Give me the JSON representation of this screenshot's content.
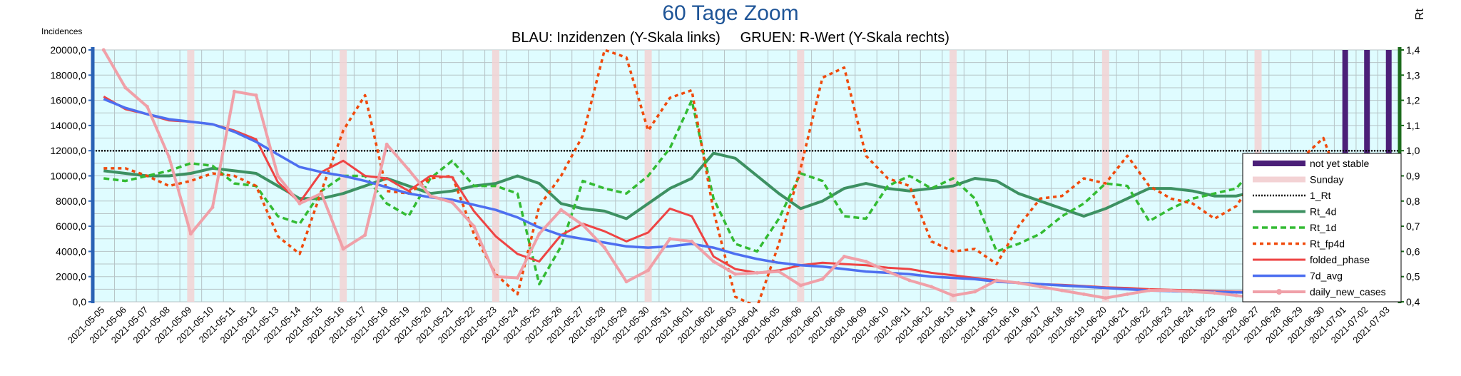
{
  "chart_data": {
    "type": "line",
    "title": "60 Tage Zoom",
    "subtitle": "BLAU: Inzidenzen (Y-Skala links)     GRUEN: R-Wert (Y-Skala rechts)",
    "ylabel": "Incidences",
    "ylabel_right": "Rt",
    "ylim": [
      0,
      20000
    ],
    "ylim_right": [
      0.4,
      1.4
    ],
    "yticks": [
      "0,0",
      "2000,0",
      "4000,0",
      "6000,0",
      "8000,0",
      "10000,0",
      "12000,0",
      "14000,0",
      "16000,0",
      "18000,0",
      "20000,0"
    ],
    "yticks_right": [
      "0,4",
      "0,5",
      "0,6",
      "0,7",
      "0,8",
      "0,9",
      "1,0",
      "1,1",
      "1,2",
      "1,3",
      "1,4"
    ],
    "x": [
      "2021-05-05",
      "2021-05-06",
      "2021-05-07",
      "2021-05-08",
      "2021-05-09",
      "2021-05-10",
      "2021-05-11",
      "2021-05-12",
      "2021-05-13",
      "2021-05-14",
      "2021-05-15",
      "2021-05-16",
      "2021-05-17",
      "2021-05-18",
      "2021-05-19",
      "2021-05-20",
      "2021-05-21",
      "2021-05-22",
      "2021-05-23",
      "2021-05-24",
      "2021-05-25",
      "2021-05-26",
      "2021-05-27",
      "2021-05-28",
      "2021-05-29",
      "2021-05-30",
      "2021-05-31",
      "2021-06-01",
      "2021-06-02",
      "2021-06-03",
      "2021-06-04",
      "2021-06-05",
      "2021-06-06",
      "2021-06-07",
      "2021-06-08",
      "2021-06-09",
      "2021-06-10",
      "2021-06-11",
      "2021-06-12",
      "2021-06-13",
      "2021-06-14",
      "2021-06-15",
      "2021-06-16",
      "2021-06-17",
      "2021-06-18",
      "2021-06-19",
      "2021-06-20",
      "2021-06-21",
      "2021-06-22",
      "2021-06-23",
      "2021-06-24",
      "2021-06-25",
      "2021-06-26",
      "2021-06-27",
      "2021-06-28",
      "2021-06-29",
      "2021-06-30",
      "2021-07-01",
      "2021-07-02",
      "2021-07-03"
    ],
    "sunday_dates": [
      "2021-05-09",
      "2021-05-16",
      "2021-05-23",
      "2021-05-30",
      "2021-06-06",
      "2021-06-13",
      "2021-06-20",
      "2021-06-27"
    ],
    "not_yet_stable_dates": [
      "2021-07-01",
      "2021-07-02",
      "2021-07-03"
    ],
    "rt_reference": 1.0,
    "series": [
      {
        "name": "Rt_4d",
        "axis": "right",
        "color": "#3d9162",
        "style": "solid",
        "values": [
          0.92,
          0.91,
          0.9,
          0.9,
          0.91,
          0.93,
          0.92,
          0.91,
          0.86,
          0.81,
          0.81,
          0.83,
          0.86,
          0.89,
          0.86,
          0.83,
          0.84,
          0.86,
          0.87,
          0.9,
          0.87,
          0.79,
          0.77,
          0.76,
          0.73,
          0.79,
          0.85,
          0.89,
          0.99,
          0.97,
          0.9,
          0.83,
          0.77,
          0.8,
          0.85,
          0.87,
          0.85,
          0.84,
          0.85,
          0.86,
          0.89,
          0.88,
          0.83,
          0.8,
          0.77,
          0.74,
          0.77,
          0.81,
          0.85,
          0.85,
          0.84,
          0.82,
          0.82,
          0.84,
          0.88,
          0.9,
          0.91,
          0.92,
          0.9,
          0.91
        ]
      },
      {
        "name": "Rt_1d",
        "axis": "right",
        "color": "#33bb33",
        "style": "dashed",
        "values": [
          0.89,
          0.88,
          0.9,
          0.92,
          0.95,
          0.94,
          0.87,
          0.86,
          0.74,
          0.71,
          0.84,
          0.9,
          0.9,
          0.79,
          0.74,
          0.89,
          0.96,
          0.86,
          0.86,
          0.83,
          0.47,
          0.62,
          0.88,
          0.85,
          0.83,
          0.9,
          1.01,
          1.2,
          0.81,
          0.63,
          0.6,
          0.73,
          0.91,
          0.88,
          0.74,
          0.73,
          0.86,
          0.9,
          0.85,
          0.89,
          0.81,
          0.6,
          0.63,
          0.67,
          0.74,
          0.79,
          0.87,
          0.86,
          0.72,
          0.77,
          0.81,
          0.83,
          0.85,
          0.95,
          0.89,
          0.9,
          0.94,
          0.89,
          0.91,
          0.92
        ]
      },
      {
        "name": "Rt_fp4d",
        "axis": "right",
        "color": "#f04a0c",
        "style": "dotted",
        "values": [
          0.93,
          0.93,
          0.9,
          0.86,
          0.88,
          0.91,
          0.9,
          0.86,
          0.66,
          0.59,
          0.84,
          1.08,
          1.22,
          0.84,
          0.83,
          0.89,
          0.9,
          0.67,
          0.51,
          0.43,
          0.78,
          0.9,
          1.06,
          1.4,
          1.37,
          1.08,
          1.21,
          1.24,
          0.76,
          0.42,
          0.38,
          0.63,
          0.93,
          1.29,
          1.33,
          0.98,
          0.89,
          0.86,
          0.64,
          0.6,
          0.61,
          0.55,
          0.7,
          0.81,
          0.82,
          0.89,
          0.87,
          0.98,
          0.86,
          0.81,
          0.79,
          0.73,
          0.78,
          0.91,
          0.9,
          0.97,
          1.05,
          0.81,
          0.78,
          0.77
        ]
      },
      {
        "name": "folded_phase",
        "axis": "left",
        "color": "#ee4444",
        "style": "solid",
        "values": [
          16300,
          15300,
          14900,
          14400,
          14300,
          14100,
          13600,
          12900,
          9500,
          7900,
          10300,
          11200,
          10000,
          9800,
          8800,
          10000,
          9900,
          7200,
          5200,
          3800,
          3200,
          5300,
          6200,
          5600,
          4800,
          5500,
          7400,
          6800,
          3600,
          2600,
          2300,
          2500,
          2900,
          3100,
          3000,
          2900,
          2700,
          2600,
          2300,
          2100,
          1900,
          1700,
          1500,
          1400,
          1350,
          1250,
          1150,
          1100,
          1000,
          950,
          900,
          850,
          800,
          800,
          750,
          750,
          720,
          600,
          550,
          500
        ]
      },
      {
        "name": "7d_avg",
        "axis": "left",
        "color": "#4d6ff0",
        "style": "solid",
        "values": [
          16100,
          15400,
          14900,
          14500,
          14300,
          14100,
          13500,
          12700,
          11700,
          10700,
          10300,
          10000,
          9600,
          9100,
          8600,
          8300,
          8100,
          7700,
          7300,
          6700,
          5900,
          5300,
          5000,
          4700,
          4400,
          4300,
          4400,
          4600,
          4300,
          3800,
          3400,
          3100,
          2900,
          2800,
          2600,
          2400,
          2300,
          2200,
          2000,
          1900,
          1800,
          1600,
          1500,
          1400,
          1300,
          1200,
          1100,
          1000,
          900,
          850,
          800,
          780,
          750,
          720,
          700,
          680,
          650,
          600,
          550,
          500
        ]
      },
      {
        "name": "daily_new_cases",
        "axis": "left",
        "color": "#f0a0a8",
        "style": "solid",
        "values": [
          20000,
          17000,
          15500,
          11500,
          5400,
          7500,
          16700,
          16400,
          10000,
          7800,
          8600,
          4200,
          5300,
          12500,
          10500,
          8400,
          7900,
          6000,
          2000,
          1900,
          5400,
          7300,
          6100,
          4300,
          1600,
          2500,
          5000,
          4800,
          3200,
          2200,
          2300,
          2400,
          1300,
          1800,
          3600,
          3200,
          2400,
          1700,
          1200,
          500,
          800,
          1700,
          1500,
          1200,
          900,
          600,
          300,
          600,
          900,
          900,
          800,
          700,
          500,
          300,
          550,
          850,
          800,
          650,
          450,
          300
        ]
      }
    ],
    "legend": [
      "not yet stable",
      "Sunday",
      "1_Rt",
      "Rt_4d",
      "Rt_1d",
      "Rt_fp4d",
      "folded_phase",
      "7d_avg",
      "daily_new_cases"
    ],
    "legend_position": "right",
    "grid": true
  }
}
